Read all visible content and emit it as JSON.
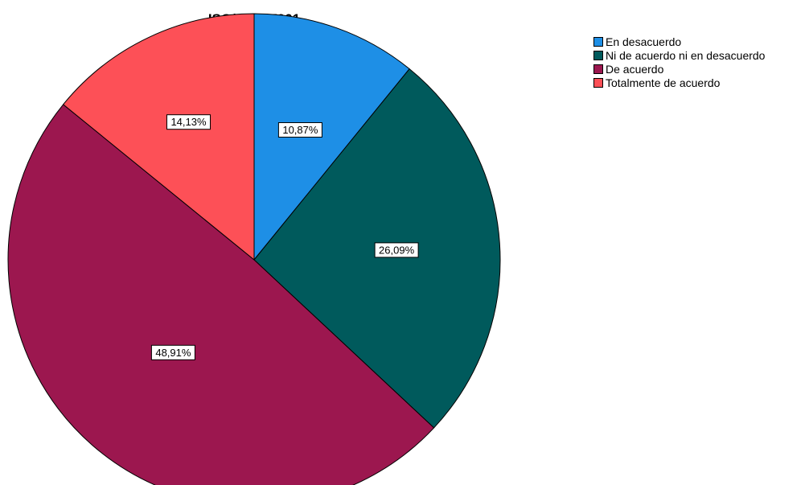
{
  "chart_data": {
    "type": "pie",
    "title": "ISO/IEC 27001",
    "legend_position": "top-right",
    "start_angle_deg": 0,
    "direction": "clockwise",
    "slices": [
      {
        "label": "En desacuerdo",
        "value": 10.87,
        "value_label": "10,87%",
        "color": "#1e8fe6"
      },
      {
        "label": "Ni de acuerdo ni en desacuerdo",
        "value": 26.09,
        "value_label": "26,09%",
        "color": "#005a5c"
      },
      {
        "label": "De acuerdo",
        "value": 48.91,
        "value_label": "48,91%",
        "color": "#9c174f"
      },
      {
        "label": "Totalmente de acuerdo",
        "value": 14.13,
        "value_label": "14,13%",
        "color": "#fd5057"
      }
    ]
  }
}
